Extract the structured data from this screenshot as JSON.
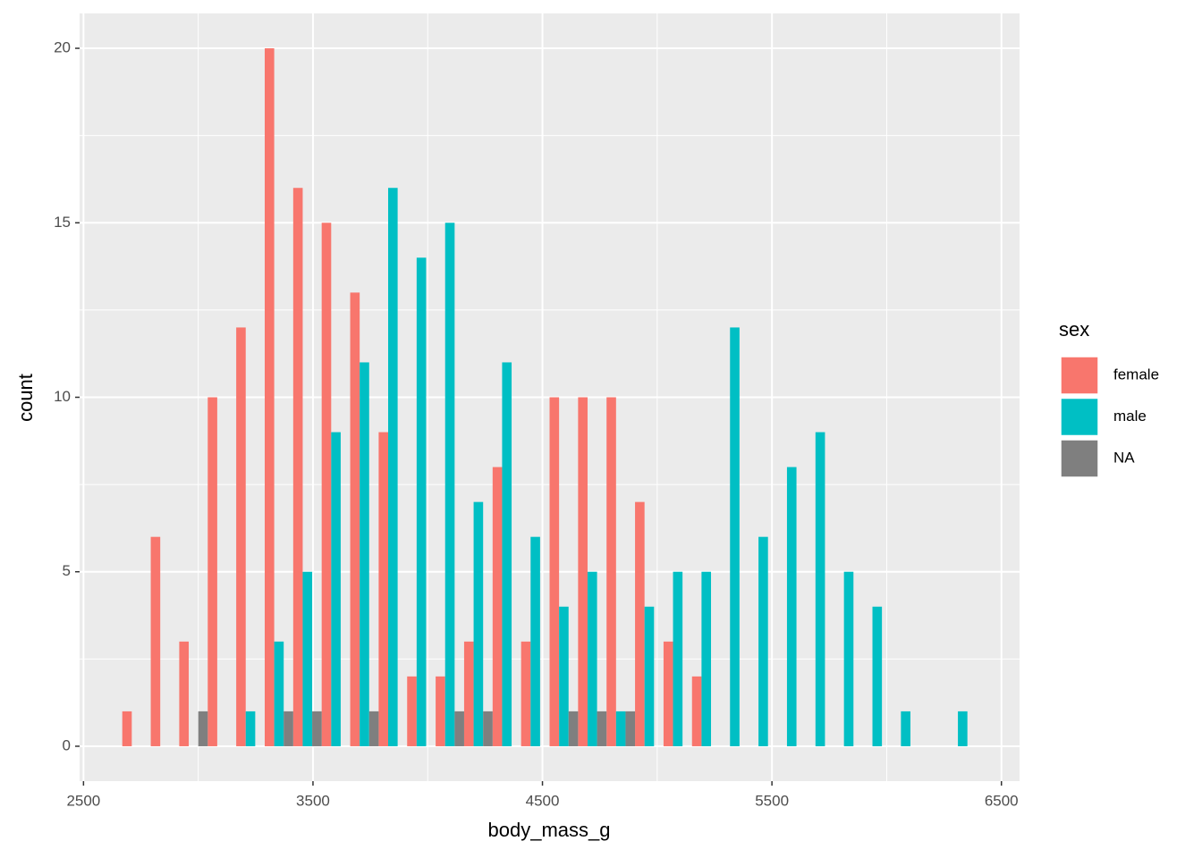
{
  "chart_data": {
    "type": "histogram",
    "x_label": "body_mass_g",
    "y_label": "count",
    "legend_title": "sex",
    "legend_position": "right",
    "grid": true,
    "bins": [
      2669.0,
      2793.1,
      2917.2,
      3041.4,
      3165.5,
      3289.7,
      3413.8,
      3537.9,
      3662.1,
      3786.2,
      3910.3,
      4034.5,
      4158.6,
      4282.8,
      4406.9,
      4531.0,
      4655.2,
      4779.3,
      4903.4,
      5027.6,
      5151.7,
      5275.9,
      5400.0,
      5524.1,
      5648.3,
      5772.4,
      5896.6,
      6020.7,
      6144.8,
      6269.0,
      6393.1
    ],
    "series": [
      {
        "name": "female",
        "color": "#F8766D",
        "values": [
          1,
          6,
          3,
          10,
          12,
          20,
          16,
          15,
          13,
          9,
          2,
          2,
          3,
          8,
          3,
          10,
          10,
          10,
          7,
          3,
          2,
          0,
          0,
          0,
          0,
          0,
          0,
          0,
          0,
          0
        ]
      },
      {
        "name": "male",
        "color": "#00BFC4",
        "values": [
          0,
          0,
          0,
          0,
          1,
          3,
          5,
          9,
          11,
          16,
          14,
          15,
          7,
          11,
          6,
          4,
          5,
          1,
          4,
          5,
          5,
          12,
          6,
          8,
          9,
          5,
          4,
          1,
          0,
          1
        ]
      },
      {
        "name": "NA",
        "color": "#7F7F7F",
        "values": [
          0,
          0,
          1,
          0,
          0,
          1,
          1,
          0,
          1,
          0,
          0,
          1,
          1,
          0,
          0,
          1,
          1,
          1,
          0,
          0,
          0,
          0,
          0,
          0,
          0,
          0,
          0,
          0,
          0,
          0
        ]
      }
    ],
    "xlim": [
      2483,
      6579
    ],
    "xticks": [
      2500,
      3500,
      4500,
      5500,
      6500
    ],
    "ylim": [
      -1,
      21
    ],
    "yticks": [
      0,
      5,
      10,
      15,
      20
    ]
  }
}
